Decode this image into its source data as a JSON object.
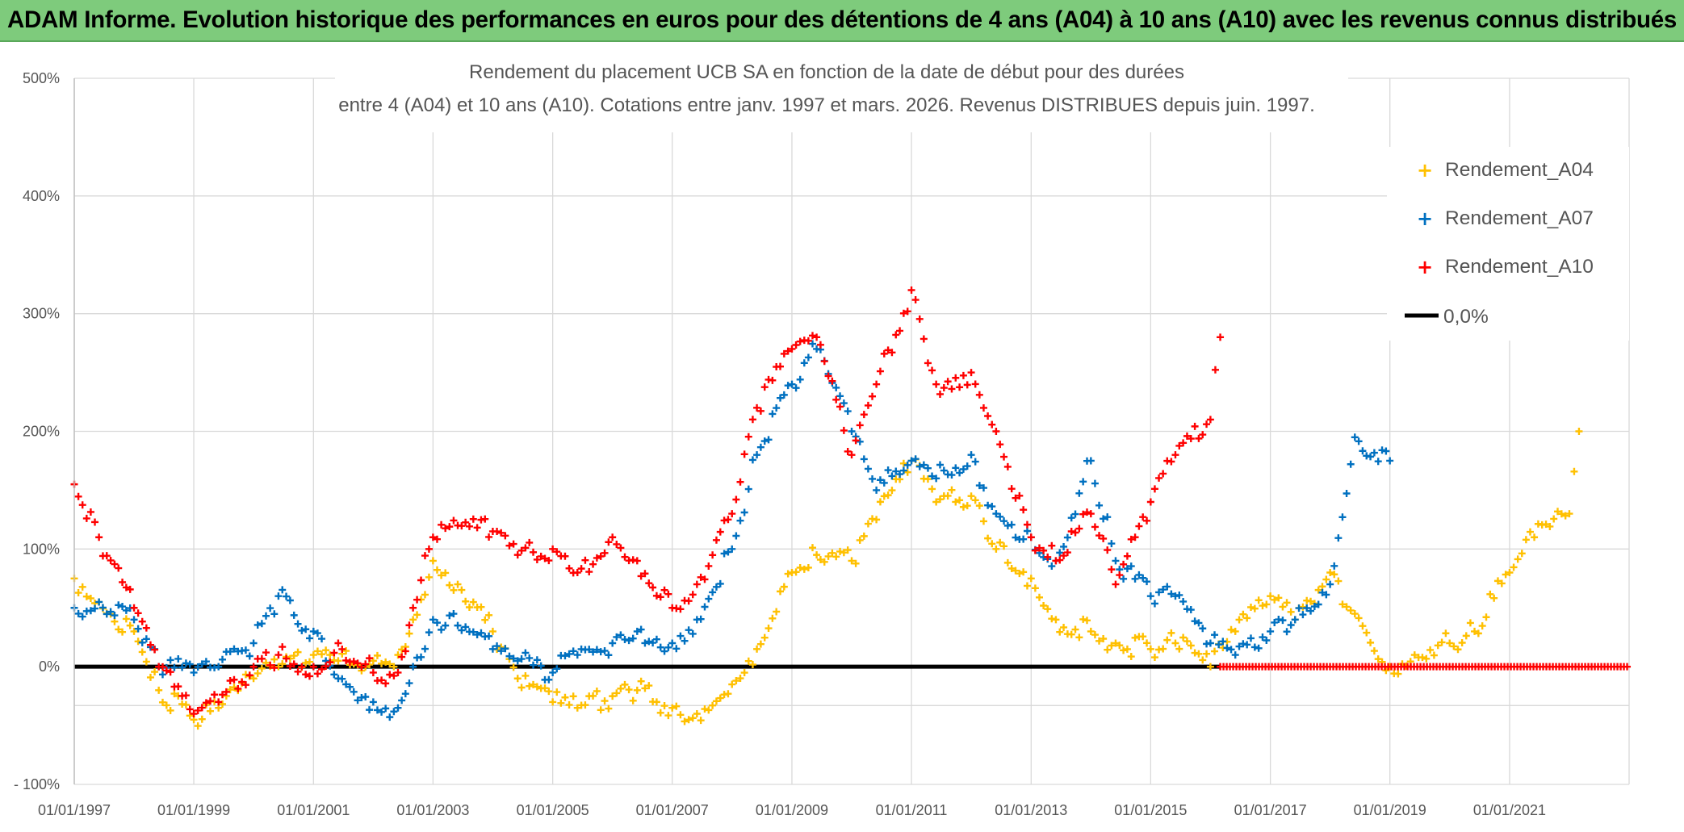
{
  "banner": {
    "text": "ADAM Informe. Evolution historique des performances en euros pour des détentions de 4 ans (A04) à 10 ans (A10) avec les revenus connus distribués"
  },
  "chart_data": {
    "type": "scatter",
    "title_line1": "Rendement du placement UCB SA en fonction de la date de début pour des durées",
    "title_line2": "entre 4 (A04) et 10 ans (A10). Cotations entre janv. 1997 et mars. 2026. Revenus DISTRIBUES depuis juin. 1997.",
    "xlabel": "",
    "ylabel": "",
    "x_range": [
      "1997-01-01",
      "2023-01-01"
    ],
    "ylim": [
      -100,
      500
    ],
    "y_ticks": [
      -100,
      0,
      100,
      200,
      300,
      400,
      500
    ],
    "y_tick_labels": [
      "- 100%",
      "0%",
      "100%",
      "200%",
      "300%",
      "400%",
      "500%"
    ],
    "x_ticks": [
      "1997-01-01",
      "1999-01-01",
      "2001-01-01",
      "2003-01-01",
      "2005-01-01",
      "2007-01-01",
      "2009-01-01",
      "2011-01-01",
      "2013-01-01",
      "2015-01-01",
      "2017-01-01",
      "2019-01-01",
      "2021-01-01"
    ],
    "x_tick_labels": [
      "01/01/1997",
      "01/01/1999",
      "01/01/2001",
      "01/01/2003",
      "01/01/2005",
      "01/01/2007",
      "01/01/2009",
      "01/01/2011",
      "01/01/2013",
      "01/01/2015",
      "01/01/2017",
      "01/01/2019",
      "01/01/2021"
    ],
    "grid": true,
    "legend_position": "top-right",
    "series": [
      {
        "name": "Rendement_A04",
        "color": "#ffc000",
        "marker": "+",
        "x": [
          "1997-01-01",
          "1997-06-01",
          "1998-01-01",
          "1998-06-01",
          "1999-01-01",
          "1999-06-01",
          "2000-01-01",
          "2000-06-01",
          "2001-01-01",
          "2001-06-01",
          "2002-01-01",
          "2002-06-01",
          "2002-09-01",
          "2003-01-01",
          "2003-06-01",
          "2004-01-01",
          "2004-06-01",
          "2005-01-01",
          "2005-06-01",
          "2006-01-01",
          "2006-06-01",
          "2007-01-01",
          "2007-06-01",
          "2008-01-01",
          "2008-06-01",
          "2009-01-01",
          "2009-06-01",
          "2010-01-01",
          "2010-06-01",
          "2011-01-01",
          "2011-06-01",
          "2012-01-01",
          "2012-06-01",
          "2013-01-01",
          "2013-06-01",
          "2014-01-01",
          "2014-06-01",
          "2015-01-01",
          "2015-06-01",
          "2016-01-01",
          "2016-06-01",
          "2017-01-01",
          "2017-06-01",
          "2018-01-01",
          "2018-06-01",
          "2019-01-01",
          "2019-06-01",
          "2020-01-01",
          "2020-06-01",
          "2021-01-01",
          "2021-06-01",
          "2022-01-01",
          "2022-03-01"
        ],
        "y": [
          75,
          55,
          30,
          -20,
          -45,
          -35,
          -10,
          0,
          10,
          5,
          5,
          10,
          40,
          90,
          70,
          30,
          -10,
          -30,
          -35,
          -25,
          -20,
          -35,
          -40,
          -15,
          15,
          80,
          95,
          90,
          125,
          175,
          140,
          145,
          100,
          75,
          40,
          30,
          20,
          15,
          20,
          0,
          30,
          60,
          40,
          80,
          45,
          0,
          10,
          20,
          30,
          80,
          110,
          130,
          200
        ]
      },
      {
        "name": "Rendement_A07",
        "color": "#0070c0",
        "marker": "+",
        "x": [
          "1997-01-01",
          "1997-06-01",
          "1998-01-01",
          "1998-06-01",
          "1999-01-01",
          "1999-06-01",
          "2000-01-01",
          "2000-06-01",
          "2001-01-01",
          "2001-06-01",
          "2002-01-01",
          "2002-06-01",
          "2002-09-01",
          "2003-01-01",
          "2003-06-01",
          "2004-01-01",
          "2004-06-01",
          "2005-01-01",
          "2005-06-01",
          "2006-01-01",
          "2006-06-01",
          "2007-01-01",
          "2007-06-01",
          "2008-01-01",
          "2008-06-01",
          "2009-01-01",
          "2009-06-01",
          "2010-01-01",
          "2010-06-01",
          "2011-01-01",
          "2011-06-01",
          "2012-01-01",
          "2012-06-01",
          "2013-01-01",
          "2013-06-01",
          "2014-01-01",
          "2014-06-01",
          "2015-01-01",
          "2015-06-01",
          "2016-01-01",
          "2016-06-01",
          "2017-01-01",
          "2017-06-01",
          "2018-01-01",
          "2018-06-01",
          "2019-01-01"
        ],
        "y": [
          50,
          55,
          40,
          0,
          -5,
          0,
          20,
          60,
          30,
          -10,
          -30,
          -35,
          0,
          40,
          35,
          15,
          5,
          -5,
          10,
          20,
          30,
          20,
          40,
          100,
          180,
          240,
          270,
          200,
          150,
          175,
          160,
          180,
          130,
          110,
          90,
          175,
          90,
          60,
          60,
          20,
          10,
          30,
          40,
          70,
          195,
          175
        ]
      },
      {
        "name": "Rendement_A10",
        "color": "#ff0000",
        "marker": "+",
        "x": [
          "1997-01-01",
          "1997-06-01",
          "1998-01-01",
          "1998-06-01",
          "1999-01-01",
          "1999-06-01",
          "2000-01-01",
          "2000-06-01",
          "2001-01-01",
          "2001-06-01",
          "2002-01-01",
          "2002-06-01",
          "2002-09-01",
          "2003-01-01",
          "2003-06-01",
          "2004-01-01",
          "2004-06-01",
          "2005-01-01",
          "2005-06-01",
          "2006-01-01",
          "2006-06-01",
          "2007-01-01",
          "2007-06-01",
          "2008-01-01",
          "2008-06-01",
          "2009-01-01",
          "2009-06-01",
          "2010-01-01",
          "2010-06-01",
          "2011-01-01",
          "2011-06-01",
          "2012-01-01",
          "2012-06-01",
          "2013-01-01",
          "2013-06-01",
          "2014-01-01",
          "2014-06-01",
          "2015-01-01",
          "2015-06-01",
          "2016-01-01",
          "2016-03-01"
        ],
        "y": [
          155,
          110,
          50,
          0,
          -40,
          -30,
          0,
          10,
          0,
          20,
          -5,
          -5,
          50,
          110,
          120,
          115,
          95,
          100,
          80,
          110,
          90,
          50,
          70,
          130,
          220,
          270,
          280,
          180,
          240,
          320,
          240,
          250,
          200,
          110,
          90,
          130,
          70,
          140,
          180,
          210,
          280
        ]
      }
    ],
    "reference_line": {
      "name": "0,0%",
      "y": 0,
      "color": "#000000"
    },
    "zero_flat_series_after": {
      "series": "Rendement_A10",
      "x_start": "2016-03-01",
      "x_end": "2023-01-01",
      "y": 0
    }
  }
}
